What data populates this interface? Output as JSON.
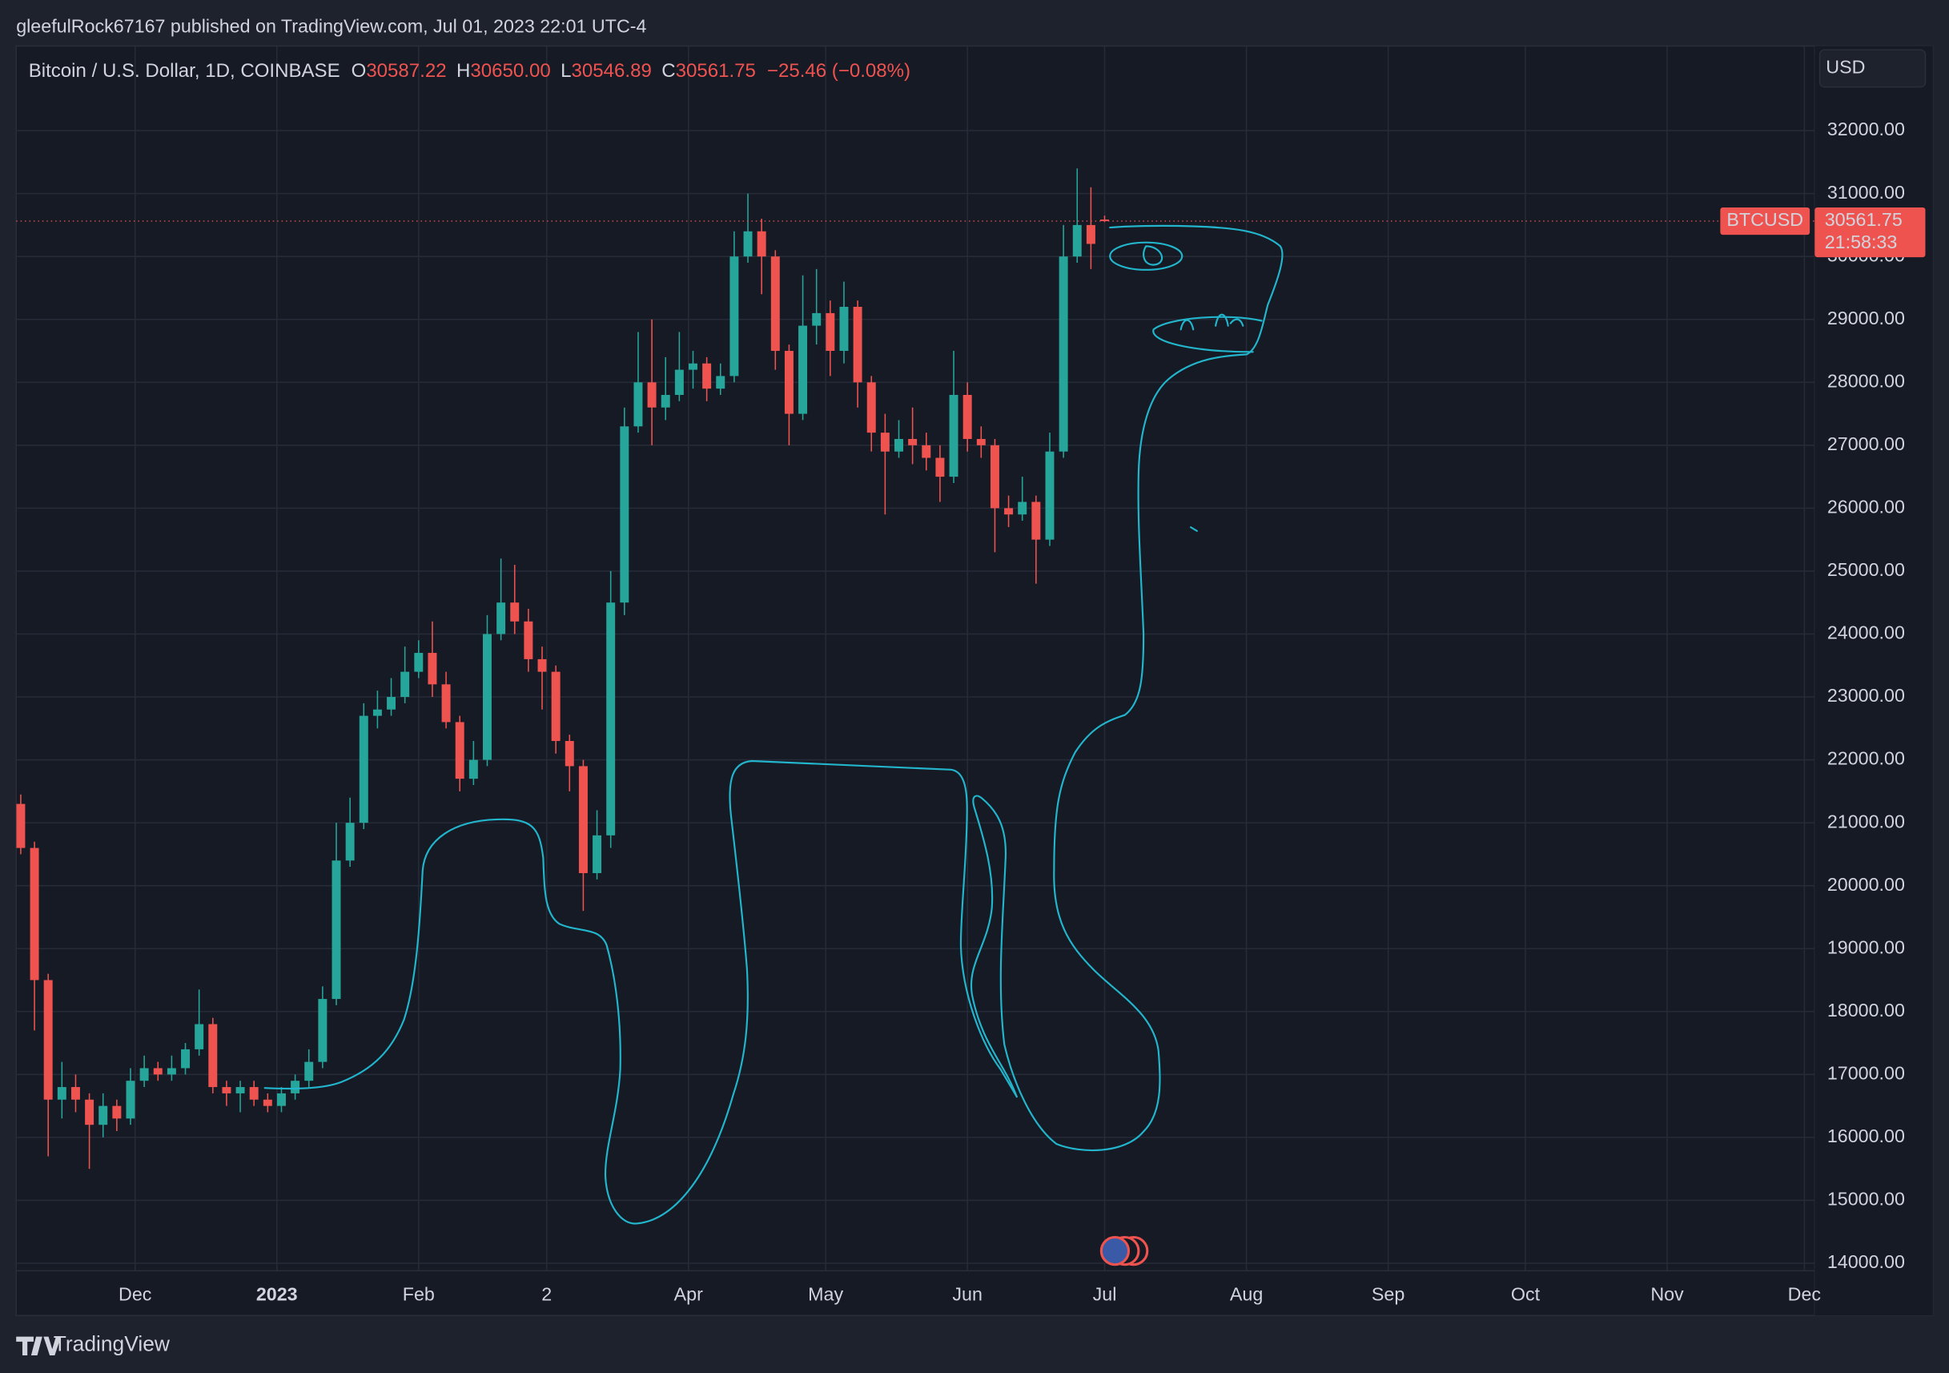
{
  "header": {
    "publisher": "gleefulRock67167 published on TradingView.com, Jul 01, 2023 22:01 UTC-4"
  },
  "chart_data": {
    "type": "candlestick",
    "title": "Bitcoin / U.S. Dollar, 1D, COINBASE",
    "legend": [
      {
        "key": "O",
        "label": "30587.22"
      },
      {
        "key": "H",
        "label": "30650.00"
      },
      {
        "key": "L",
        "label": "30546.89"
      },
      {
        "key": "C",
        "label": "30561.75"
      }
    ],
    "change_label": "−25.46 (−0.08%)",
    "currency": "USD",
    "symbol_tag": "BTCUSD",
    "last_price_label": "30561.75",
    "countdown": "21:58:33",
    "up_color": "#26a69a",
    "down_color": "#ef5350",
    "x": [
      1,
      4,
      7,
      10,
      13,
      16,
      19,
      22,
      25,
      28,
      31,
      34,
      37,
      40,
      43,
      46,
      49,
      52,
      55,
      58,
      61,
      64,
      67,
      70,
      73,
      76,
      79,
      82,
      85,
      88,
      91,
      94,
      97,
      100,
      103,
      106,
      109,
      112,
      115,
      118,
      121,
      124,
      127,
      130,
      133,
      136,
      139,
      142,
      145,
      148,
      151,
      154,
      157,
      160,
      163,
      166,
      169,
      172,
      175,
      178,
      181,
      184,
      187,
      190,
      193,
      196,
      199,
      202,
      205,
      208,
      211,
      214,
      217,
      220,
      223,
      226,
      229,
      232,
      235,
      238
    ],
    "open": [
      21300,
      20600,
      18500,
      16600,
      16800,
      16600,
      16200,
      16500,
      16300,
      16900,
      17100,
      17000,
      17100,
      17400,
      17800,
      16800,
      16700,
      16800,
      16600,
      16500,
      16700,
      16900,
      17200,
      18200,
      20400,
      21000,
      22700,
      22800,
      23000,
      23400,
      23700,
      23200,
      22600,
      21700,
      22000,
      24000,
      24500,
      24200,
      23600,
      23400,
      22300,
      21900,
      20200,
      20800,
      24500,
      27300,
      28000,
      27600,
      27800,
      28200,
      28300,
      27900,
      28100,
      30000,
      30400,
      30000,
      28500,
      27500,
      28900,
      29100,
      28500,
      29200,
      28000,
      27200,
      26900,
      27100,
      27000,
      26800,
      26500,
      27800,
      27100,
      27000,
      26000,
      25900,
      26100,
      25500,
      26900,
      30000,
      30500,
      30587.22
    ],
    "high": [
      21450,
      20700,
      18600,
      17200,
      17000,
      16700,
      16700,
      16600,
      17100,
      17300,
      17200,
      17300,
      17500,
      18350,
      17900,
      16900,
      16900,
      16900,
      16700,
      16800,
      17000,
      17400,
      18400,
      21000,
      21400,
      22900,
      23100,
      23300,
      23800,
      23900,
      24200,
      23400,
      22700,
      22300,
      24300,
      25200,
      25100,
      24400,
      23800,
      23500,
      22400,
      22000,
      21200,
      25000,
      27600,
      28800,
      29000,
      28400,
      28800,
      28500,
      28400,
      28300,
      30400,
      31000,
      30600,
      30100,
      28600,
      29700,
      29800,
      29300,
      29600,
      29300,
      28100,
      27500,
      27400,
      27600,
      27200,
      27000,
      28500,
      28000,
      27300,
      27100,
      26200,
      26500,
      26200,
      27200,
      30500,
      31400,
      31100,
      30650
    ],
    "low": [
      20500,
      17700,
      15700,
      16300,
      16400,
      15500,
      16000,
      16100,
      16200,
      16800,
      16900,
      16900,
      17000,
      17300,
      16700,
      16500,
      16400,
      16500,
      16400,
      16400,
      16600,
      16800,
      17100,
      18100,
      20300,
      20900,
      22500,
      22700,
      22900,
      23300,
      23000,
      22500,
      21500,
      21600,
      21900,
      23900,
      24000,
      23400,
      22800,
      22100,
      21500,
      19600,
      20100,
      20600,
      24300,
      27200,
      27000,
      27400,
      27700,
      27900,
      27700,
      27800,
      28000,
      29900,
      29400,
      28200,
      27000,
      27400,
      28600,
      28100,
      28300,
      27600,
      26900,
      25900,
      26800,
      26700,
      26600,
      26100,
      26400,
      26900,
      26800,
      25300,
      25700,
      25800,
      24800,
      25400,
      26800,
      29900,
      29800,
      30546.89
    ],
    "close": [
      20600,
      18500,
      16600,
      16800,
      16600,
      16200,
      16500,
      16300,
      16900,
      17100,
      17000,
      17100,
      17400,
      17800,
      16800,
      16700,
      16800,
      16600,
      16500,
      16700,
      16900,
      17200,
      18200,
      20400,
      21000,
      22700,
      22800,
      23000,
      23400,
      23700,
      23200,
      22600,
      21700,
      22000,
      24000,
      24500,
      24200,
      23600,
      23400,
      22300,
      21900,
      20200,
      20800,
      24500,
      27300,
      28000,
      27600,
      27800,
      28200,
      28300,
      27900,
      28100,
      30000,
      30400,
      30000,
      28500,
      27500,
      28900,
      29100,
      28500,
      29200,
      28000,
      27200,
      26900,
      27100,
      27000,
      26800,
      26500,
      27800,
      27100,
      27000,
      26000,
      25900,
      26100,
      25500,
      26900,
      30000,
      30500,
      30200,
      30561.75
    ],
    "xlim": [
      0,
      393
    ],
    "xticks": [
      {
        "value": 26,
        "label": "Dec"
      },
      {
        "value": 57,
        "label": "2023"
      },
      {
        "value": 88,
        "label": "Feb"
      },
      {
        "value": 116,
        "label": "2"
      },
      {
        "value": 147,
        "label": "Apr"
      },
      {
        "value": 177,
        "label": "May"
      },
      {
        "value": 208,
        "label": "Jun"
      },
      {
        "value": 238,
        "label": "Jul"
      },
      {
        "value": 269,
        "label": "Aug"
      },
      {
        "value": 300,
        "label": "Sep"
      },
      {
        "value": 330,
        "label": "Oct"
      },
      {
        "value": 361,
        "label": "Nov"
      },
      {
        "value": 391,
        "label": "Dec"
      }
    ],
    "ylim": [
      13880,
      33345
    ],
    "yticks": [
      {
        "value": 32000,
        "label": "32000.00"
      },
      {
        "value": 31000,
        "label": "31000.00"
      },
      {
        "value": 30000,
        "label": "30000.00"
      },
      {
        "value": 29000,
        "label": "29000.00"
      },
      {
        "value": 28000,
        "label": "28000.00"
      },
      {
        "value": 27000,
        "label": "27000.00"
      },
      {
        "value": 26000,
        "label": "26000.00"
      },
      {
        "value": 25000,
        "label": "25000.00"
      },
      {
        "value": 24000,
        "label": "24000.00"
      },
      {
        "value": 23000,
        "label": "23000.00"
      },
      {
        "value": 22000,
        "label": "22000.00"
      },
      {
        "value": 21000,
        "label": "21000.00"
      },
      {
        "value": 20000,
        "label": "20000.00"
      },
      {
        "value": 19000,
        "label": "19000.00"
      },
      {
        "value": 18000,
        "label": "18000.00"
      },
      {
        "value": 17000,
        "label": "17000.00"
      },
      {
        "value": 16000,
        "label": "16000.00"
      },
      {
        "value": 15000,
        "label": "15000.00"
      },
      {
        "value": 14000,
        "label": "14000.00"
      }
    ],
    "grid": true
  },
  "footer": {
    "brand": "TradingView"
  }
}
